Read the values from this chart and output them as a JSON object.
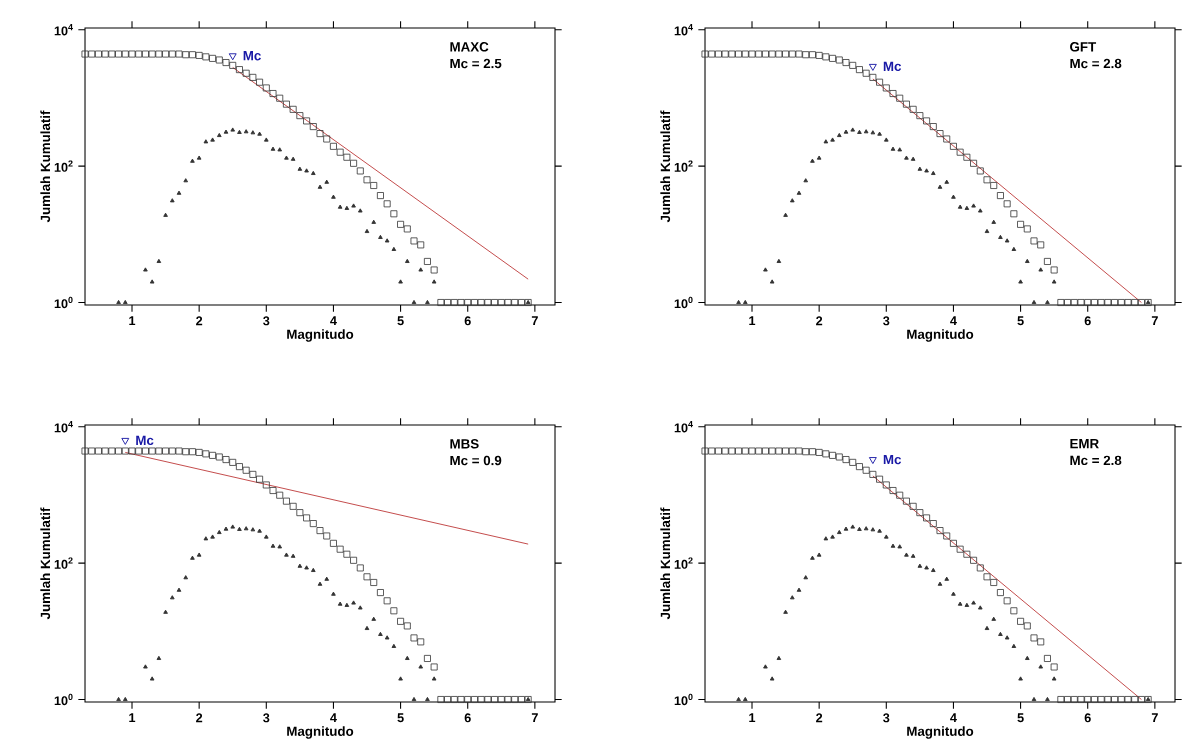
{
  "chart_data": [
    {
      "type": "scatter",
      "xlabel": "Magnitudo",
      "ylabel": "Jumlah Kumulatif",
      "log": "y",
      "xlim": [
        0.3,
        7.3
      ],
      "ylim": [
        0.92,
        10600
      ],
      "xticks": [
        1,
        2,
        3,
        4,
        5,
        6,
        7
      ],
      "yticks": [
        {
          "value": 1,
          "label": "10$^{0}$"
        },
        {
          "value": 100,
          "label": "10$^{2}$"
        },
        {
          "value": 10000,
          "label": "10$^{4}$"
        }
      ],
      "annotations": [
        "MAXC",
        "Mc = 2.5"
      ],
      "series": [
        {
          "color": "#333333",
          "marker": "square",
          "x": [
            0.3,
            0.4,
            0.5,
            0.6,
            0.7,
            0.8,
            0.9,
            1.0,
            1.1,
            1.2,
            1.3,
            1.4,
            1.5,
            1.6,
            1.7,
            1.8,
            1.9,
            2.0,
            2.1,
            2.2,
            2.3,
            2.4,
            2.5,
            2.6,
            2.7,
            2.8,
            2.9,
            3.0,
            3.1,
            3.2,
            3.3,
            3.4,
            3.5,
            3.6,
            3.7,
            3.8,
            3.9,
            4.0,
            4.1,
            4.2,
            4.3,
            4.4,
            4.5,
            4.6,
            4.7,
            4.8,
            4.9,
            5.0,
            5.1,
            5.2,
            5.3,
            5.4,
            5.5,
            5.6,
            5.7,
            5.8,
            5.9,
            6.0,
            6.1,
            6.2,
            6.3,
            6.4,
            6.5,
            6.6,
            6.7,
            6.8,
            6.9
          ],
          "values": [
            4400,
            4400,
            4400,
            4400,
            4400,
            4400,
            4400,
            4400,
            4400,
            4400,
            4400,
            4400,
            4400,
            4400,
            4400,
            4300,
            4300,
            4200,
            4000,
            3800,
            3600,
            3300,
            3000,
            2600,
            2300,
            2000,
            1700,
            1400,
            1160,
            990,
            810,
            680,
            550,
            460,
            380,
            300,
            250,
            195,
            160,
            135,
            110,
            85,
            63,
            52,
            37,
            28,
            20,
            14,
            12,
            8,
            7,
            4,
            3,
            1,
            1,
            1,
            1,
            1,
            1,
            1,
            1,
            1,
            1,
            1,
            1,
            1,
            1
          ]
        },
        {
          "color": "#333333",
          "marker": "triangle",
          "x": [
            0.8,
            0.9,
            1.2,
            1.3,
            1.4,
            1.5,
            1.6,
            1.7,
            1.8,
            1.9,
            2.0,
            2.1,
            2.2,
            2.3,
            2.4,
            2.5,
            2.6,
            2.7,
            2.8,
            2.9,
            3.0,
            3.1,
            3.2,
            3.3,
            3.4,
            3.5,
            3.6,
            3.7,
            3.8,
            3.9,
            4.0,
            4.1,
            4.2,
            4.3,
            4.4,
            4.5,
            4.6,
            4.7,
            4.8,
            4.9,
            5.0,
            5.1,
            5.2,
            5.3,
            5.4,
            5.5,
            6.9
          ],
          "values": [
            1,
            1,
            3,
            2,
            4,
            19,
            31,
            40,
            61,
            118,
            131,
            227,
            241,
            281,
            315,
            338,
            312,
            319,
            308,
            294,
            241,
            177,
            173,
            131,
            126,
            90,
            85,
            78,
            49,
            58,
            35,
            25,
            24,
            26,
            22,
            11,
            15,
            9,
            8,
            6,
            2,
            4,
            1,
            3,
            1,
            2,
            1
          ]
        },
        {
          "type": "line",
          "color": "#c04040",
          "marker": "none",
          "x": [
            2.5,
            6.9
          ],
          "values": [
            2800,
            2.2
          ]
        },
        {
          "name": "Mc",
          "color": "#1a1aa6",
          "marker": "triangle",
          "x": [
            2.5
          ],
          "values": [
            4150
          ]
        }
      ]
    },
    {
      "type": "scatter",
      "xlabel": "Magnitudo",
      "ylabel": "Jumlah Kumulatif",
      "log": "y",
      "xlim": [
        0.3,
        7.3
      ],
      "ylim": [
        0.92,
        10600
      ],
      "xticks": [
        1,
        2,
        3,
        4,
        5,
        6,
        7
      ],
      "yticks": [
        {
          "value": 1,
          "label": "10$^{0}$"
        },
        {
          "value": 100,
          "label": "10$^{2}$"
        },
        {
          "value": 10000,
          "label": "10$^{4}$"
        }
      ],
      "annotations": [
        "GFT",
        "Mc = 2.8"
      ],
      "series": [
        {
          "color": "#333333",
          "marker": "square",
          "x": [
            0.3,
            0.4,
            0.5,
            0.6,
            0.7,
            0.8,
            0.9,
            1.0,
            1.1,
            1.2,
            1.3,
            1.4,
            1.5,
            1.6,
            1.7,
            1.8,
            1.9,
            2.0,
            2.1,
            2.2,
            2.3,
            2.4,
            2.5,
            2.6,
            2.7,
            2.8,
            2.9,
            3.0,
            3.1,
            3.2,
            3.3,
            3.4,
            3.5,
            3.6,
            3.7,
            3.8,
            3.9,
            4.0,
            4.1,
            4.2,
            4.3,
            4.4,
            4.5,
            4.6,
            4.7,
            4.8,
            4.9,
            5.0,
            5.1,
            5.2,
            5.3,
            5.4,
            5.5,
            5.6,
            5.7,
            5.8,
            5.9,
            6.0,
            6.1,
            6.2,
            6.3,
            6.4,
            6.5,
            6.6,
            6.7,
            6.8,
            6.9
          ],
          "values": [
            4400,
            4400,
            4400,
            4400,
            4400,
            4400,
            4400,
            4400,
            4400,
            4400,
            4400,
            4400,
            4400,
            4400,
            4400,
            4300,
            4300,
            4200,
            4000,
            3800,
            3600,
            3300,
            3000,
            2600,
            2300,
            2000,
            1700,
            1400,
            1160,
            990,
            810,
            680,
            550,
            460,
            380,
            300,
            250,
            195,
            160,
            135,
            110,
            85,
            63,
            52,
            37,
            28,
            20,
            14,
            12,
            8,
            7,
            4,
            3,
            1,
            1,
            1,
            1,
            1,
            1,
            1,
            1,
            1,
            1,
            1,
            1,
            1,
            1
          ]
        },
        {
          "color": "#333333",
          "marker": "triangle",
          "x": [
            0.8,
            0.9,
            1.2,
            1.3,
            1.4,
            1.5,
            1.6,
            1.7,
            1.8,
            1.9,
            2.0,
            2.1,
            2.2,
            2.3,
            2.4,
            2.5,
            2.6,
            2.7,
            2.8,
            2.9,
            3.0,
            3.1,
            3.2,
            3.3,
            3.4,
            3.5,
            3.6,
            3.7,
            3.8,
            3.9,
            4.0,
            4.1,
            4.2,
            4.3,
            4.4,
            4.5,
            4.6,
            4.7,
            4.8,
            4.9,
            5.0,
            5.1,
            5.2,
            5.3,
            5.4,
            5.5,
            6.9
          ],
          "values": [
            1,
            1,
            3,
            2,
            4,
            19,
            31,
            40,
            61,
            118,
            131,
            227,
            241,
            281,
            315,
            338,
            312,
            319,
            308,
            294,
            241,
            177,
            173,
            131,
            126,
            90,
            85,
            78,
            49,
            58,
            35,
            25,
            24,
            26,
            22,
            11,
            15,
            9,
            8,
            6,
            2,
            4,
            1,
            3,
            1,
            2,
            1
          ]
        },
        {
          "type": "line",
          "color": "#c04040",
          "marker": "none",
          "x": [
            2.8,
            6.8
          ],
          "values": [
            1900,
            1
          ]
        },
        {
          "name": "Mc",
          "color": "#1a1aa6",
          "marker": "triangle",
          "x": [
            2.8
          ],
          "values": [
            2900
          ]
        }
      ]
    },
    {
      "type": "scatter",
      "xlabel": "Magnitudo",
      "ylabel": "Jumlah Kumulatif",
      "log": "y",
      "xlim": [
        0.3,
        7.3
      ],
      "ylim": [
        0.92,
        10600
      ],
      "xticks": [
        1,
        2,
        3,
        4,
        5,
        6,
        7
      ],
      "yticks": [
        {
          "value": 1,
          "label": "10$^{0}$"
        },
        {
          "value": 100,
          "label": "10$^{2}$"
        },
        {
          "value": 10000,
          "label": "10$^{4}$"
        }
      ],
      "annotations": [
        "MBS",
        "Mc = 0.9"
      ],
      "series": [
        {
          "color": "#333333",
          "marker": "square",
          "x": [
            0.3,
            0.4,
            0.5,
            0.6,
            0.7,
            0.8,
            0.9,
            1.0,
            1.1,
            1.2,
            1.3,
            1.4,
            1.5,
            1.6,
            1.7,
            1.8,
            1.9,
            2.0,
            2.1,
            2.2,
            2.3,
            2.4,
            2.5,
            2.6,
            2.7,
            2.8,
            2.9,
            3.0,
            3.1,
            3.2,
            3.3,
            3.4,
            3.5,
            3.6,
            3.7,
            3.8,
            3.9,
            4.0,
            4.1,
            4.2,
            4.3,
            4.4,
            4.5,
            4.6,
            4.7,
            4.8,
            4.9,
            5.0,
            5.1,
            5.2,
            5.3,
            5.4,
            5.5,
            5.6,
            5.7,
            5.8,
            5.9,
            6.0,
            6.1,
            6.2,
            6.3,
            6.4,
            6.5,
            6.6,
            6.7,
            6.8,
            6.9
          ],
          "values": [
            4400,
            4400,
            4400,
            4400,
            4400,
            4400,
            4400,
            4400,
            4400,
            4400,
            4400,
            4400,
            4400,
            4400,
            4400,
            4300,
            4300,
            4200,
            4000,
            3800,
            3600,
            3300,
            3000,
            2600,
            2300,
            2000,
            1700,
            1400,
            1160,
            990,
            810,
            680,
            550,
            460,
            380,
            300,
            250,
            195,
            160,
            135,
            110,
            85,
            63,
            52,
            37,
            28,
            20,
            14,
            12,
            8,
            7,
            4,
            3,
            1,
            1,
            1,
            1,
            1,
            1,
            1,
            1,
            1,
            1,
            1,
            1,
            1,
            1
          ]
        },
        {
          "color": "#333333",
          "marker": "triangle",
          "x": [
            0.8,
            0.9,
            1.2,
            1.3,
            1.4,
            1.5,
            1.6,
            1.7,
            1.8,
            1.9,
            2.0,
            2.1,
            2.2,
            2.3,
            2.4,
            2.5,
            2.6,
            2.7,
            2.8,
            2.9,
            3.0,
            3.1,
            3.2,
            3.3,
            3.4,
            3.5,
            3.6,
            3.7,
            3.8,
            3.9,
            4.0,
            4.1,
            4.2,
            4.3,
            4.4,
            4.5,
            4.6,
            4.7,
            4.8,
            4.9,
            5.0,
            5.1,
            5.2,
            5.3,
            5.4,
            5.5,
            6.9
          ],
          "values": [
            1,
            1,
            3,
            2,
            4,
            19,
            31,
            40,
            61,
            118,
            131,
            227,
            241,
            281,
            315,
            338,
            312,
            319,
            308,
            294,
            241,
            177,
            173,
            131,
            126,
            90,
            85,
            78,
            49,
            58,
            35,
            25,
            24,
            26,
            22,
            11,
            15,
            9,
            8,
            6,
            2,
            4,
            1,
            3,
            1,
            2,
            1
          ]
        },
        {
          "type": "line",
          "color": "#c04040",
          "marker": "none",
          "x": [
            0.9,
            6.9
          ],
          "values": [
            4200,
            190
          ]
        },
        {
          "name": "Mc",
          "color": "#1a1aa6",
          "marker": "triangle",
          "x": [
            0.9
          ],
          "values": [
            6300
          ]
        }
      ]
    },
    {
      "type": "scatter",
      "xlabel": "Magnitudo",
      "ylabel": "Jumlah Kumulatif",
      "log": "y",
      "xlim": [
        0.3,
        7.3
      ],
      "ylim": [
        0.92,
        10600
      ],
      "xticks": [
        1,
        2,
        3,
        4,
        5,
        6,
        7
      ],
      "yticks": [
        {
          "value": 1,
          "label": "10$^{0}$"
        },
        {
          "value": 100,
          "label": "10$^{2}$"
        },
        {
          "value": 10000,
          "label": "10$^{4}$"
        }
      ],
      "annotations": [
        "EMR",
        "Mc = 2.8"
      ],
      "series": [
        {
          "color": "#333333",
          "marker": "square",
          "x": [
            0.3,
            0.4,
            0.5,
            0.6,
            0.7,
            0.8,
            0.9,
            1.0,
            1.1,
            1.2,
            1.3,
            1.4,
            1.5,
            1.6,
            1.7,
            1.8,
            1.9,
            2.0,
            2.1,
            2.2,
            2.3,
            2.4,
            2.5,
            2.6,
            2.7,
            2.8,
            2.9,
            3.0,
            3.1,
            3.2,
            3.3,
            3.4,
            3.5,
            3.6,
            3.7,
            3.8,
            3.9,
            4.0,
            4.1,
            4.2,
            4.3,
            4.4,
            4.5,
            4.6,
            4.7,
            4.8,
            4.9,
            5.0,
            5.1,
            5.2,
            5.3,
            5.4,
            5.5,
            5.6,
            5.7,
            5.8,
            5.9,
            6.0,
            6.1,
            6.2,
            6.3,
            6.4,
            6.5,
            6.6,
            6.7,
            6.8,
            6.9
          ],
          "values": [
            4400,
            4400,
            4400,
            4400,
            4400,
            4400,
            4400,
            4400,
            4400,
            4400,
            4400,
            4400,
            4400,
            4400,
            4400,
            4300,
            4300,
            4200,
            4000,
            3800,
            3600,
            3300,
            3000,
            2600,
            2300,
            2000,
            1700,
            1400,
            1160,
            990,
            810,
            680,
            550,
            460,
            380,
            300,
            250,
            195,
            160,
            135,
            110,
            85,
            63,
            52,
            37,
            28,
            20,
            14,
            12,
            8,
            7,
            4,
            3,
            1,
            1,
            1,
            1,
            1,
            1,
            1,
            1,
            1,
            1,
            1,
            1,
            1,
            1
          ]
        },
        {
          "color": "#333333",
          "marker": "triangle",
          "x": [
            0.8,
            0.9,
            1.2,
            1.3,
            1.4,
            1.5,
            1.6,
            1.7,
            1.8,
            1.9,
            2.0,
            2.1,
            2.2,
            2.3,
            2.4,
            2.5,
            2.6,
            2.7,
            2.8,
            2.9,
            3.0,
            3.1,
            3.2,
            3.3,
            3.4,
            3.5,
            3.6,
            3.7,
            3.8,
            3.9,
            4.0,
            4.1,
            4.2,
            4.3,
            4.4,
            4.5,
            4.6,
            4.7,
            4.8,
            4.9,
            5.0,
            5.1,
            5.2,
            5.3,
            5.4,
            5.5,
            6.9
          ],
          "values": [
            1,
            1,
            3,
            2,
            4,
            19,
            31,
            40,
            61,
            118,
            131,
            227,
            241,
            281,
            315,
            338,
            312,
            319,
            308,
            294,
            241,
            177,
            173,
            131,
            126,
            90,
            85,
            78,
            49,
            58,
            35,
            25,
            24,
            26,
            22,
            11,
            15,
            9,
            8,
            6,
            2,
            4,
            1,
            3,
            1,
            2,
            1
          ]
        },
        {
          "type": "line",
          "color": "#c04040",
          "marker": "none",
          "x": [
            2.8,
            6.8
          ],
          "values": [
            1900,
            1
          ]
        },
        {
          "name": "Mc",
          "color": "#1a1aa6",
          "marker": "triangle",
          "x": [
            2.8
          ],
          "values": [
            3300
          ]
        }
      ]
    }
  ]
}
